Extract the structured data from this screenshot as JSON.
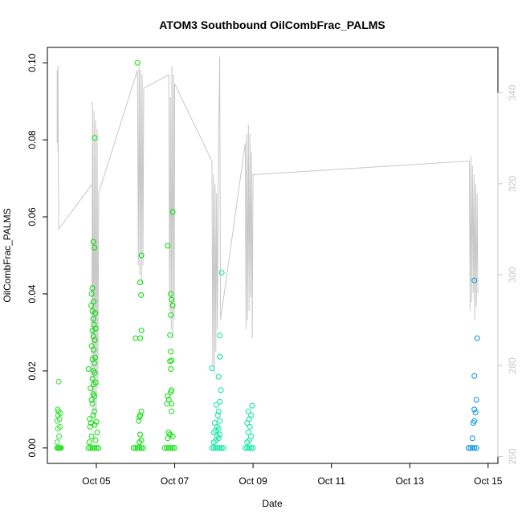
{
  "chart_data": {
    "type": "scatter",
    "title": "ATOM3 Southbound OilCombFrac_PALMS",
    "xlabel": "Date",
    "ylabel": "OilCombFrac_PALMS",
    "x_unit": "days in October",
    "xlim": [
      3.75,
      15.25
    ],
    "ylim": [
      -0.004,
      0.104
    ],
    "x_ticks": [
      5,
      7,
      9,
      11,
      13,
      15
    ],
    "x_tick_labels": [
      "Oct 05",
      "Oct 07",
      "Oct 09",
      "Oct 11",
      "Oct 13",
      "Oct 15"
    ],
    "y_ticks": [
      0.0,
      0.02,
      0.04,
      0.06,
      0.08,
      0.1
    ],
    "y_tick_labels": [
      "0.00",
      "0.02",
      "0.04",
      "0.06",
      "0.08",
      "0.10"
    ],
    "y2lim": [
      258.5,
      350
    ],
    "y2_ticks": [
      260,
      280,
      300,
      320,
      340
    ],
    "y2_tick_labels": [
      "260",
      "280",
      "300",
      "320",
      "340"
    ],
    "grid": false,
    "legend": "none",
    "colors": {
      "secondary_line": "#c8c8c8",
      "marker_palette": [
        "#2de02d",
        "#00e000",
        "#00e89a",
        "#0090e0"
      ]
    },
    "series": [
      {
        "kind": "points",
        "color": "#2de02d",
        "points": [
          [
            4.0,
            0.0
          ],
          [
            4.02,
            0.0
          ],
          [
            4.04,
            0.0
          ],
          [
            4.06,
            0.0
          ],
          [
            4.08,
            0.0
          ],
          [
            4.1,
            0.0
          ],
          [
            4.0,
            0.0015
          ],
          [
            4.05,
            0.003
          ],
          [
            4.02,
            0.005
          ],
          [
            4.07,
            0.0055
          ],
          [
            4.0,
            0.007
          ],
          [
            4.06,
            0.0075
          ],
          [
            4.02,
            0.0085
          ],
          [
            4.08,
            0.009
          ],
          [
            4.03,
            0.0095
          ],
          [
            4.01,
            0.01
          ],
          [
            4.04,
            0.0172
          ]
        ]
      },
      {
        "kind": "points",
        "color": "#00e000",
        "points": [
          [
            4.8,
            0.0
          ],
          [
            4.85,
            0.0
          ],
          [
            4.9,
            0.0
          ],
          [
            4.95,
            0.0
          ],
          [
            5.0,
            0.0
          ],
          [
            5.05,
            0.0
          ],
          [
            4.82,
            0.0015
          ],
          [
            4.98,
            0.002
          ],
          [
            4.88,
            0.003
          ],
          [
            5.02,
            0.004
          ],
          [
            4.84,
            0.0055
          ],
          [
            4.96,
            0.006
          ],
          [
            4.87,
            0.0065
          ],
          [
            5.0,
            0.0068
          ],
          [
            4.83,
            0.0075
          ],
          [
            4.92,
            0.0085
          ],
          [
            4.95,
            0.0095
          ],
          [
            4.9,
            0.0115
          ],
          [
            4.88,
            0.0125
          ],
          [
            4.95,
            0.0135
          ],
          [
            4.92,
            0.014
          ],
          [
            4.85,
            0.0155
          ],
          [
            4.93,
            0.0165
          ],
          [
            4.98,
            0.017
          ],
          [
            4.9,
            0.018
          ],
          [
            4.96,
            0.0195
          ],
          [
            4.8,
            0.0205
          ],
          [
            4.92,
            0.02
          ],
          [
            4.95,
            0.022
          ],
          [
            4.9,
            0.023
          ],
          [
            4.97,
            0.0235
          ],
          [
            4.93,
            0.0255
          ],
          [
            4.88,
            0.0265
          ],
          [
            4.96,
            0.028
          ],
          [
            4.92,
            0.029
          ],
          [
            4.9,
            0.0305
          ],
          [
            4.98,
            0.031
          ],
          [
            4.94,
            0.032
          ],
          [
            4.92,
            0.0335
          ],
          [
            4.97,
            0.035
          ],
          [
            4.9,
            0.0355
          ],
          [
            4.87,
            0.037
          ],
          [
            4.93,
            0.038
          ],
          [
            4.88,
            0.04
          ],
          [
            4.9,
            0.0415
          ],
          [
            4.95,
            0.052
          ],
          [
            4.92,
            0.0535
          ],
          [
            4.96,
            0.0805
          ]
        ]
      },
      {
        "kind": "points",
        "color": "#00e000",
        "points": [
          [
            5.95,
            0.0
          ],
          [
            6.0,
            0.0
          ],
          [
            6.05,
            0.0
          ],
          [
            6.1,
            0.0
          ],
          [
            6.15,
            0.0
          ],
          [
            6.2,
            0.0
          ],
          [
            6.1,
            0.0015
          ],
          [
            6.15,
            0.002
          ],
          [
            6.12,
            0.0035
          ],
          [
            6.08,
            0.007
          ],
          [
            6.1,
            0.008
          ],
          [
            6.12,
            0.0085
          ],
          [
            6.15,
            0.0095
          ],
          [
            6.0,
            0.0285
          ],
          [
            6.12,
            0.0285
          ],
          [
            6.15,
            0.0305
          ],
          [
            6.14,
            0.0397
          ],
          [
            6.12,
            0.043
          ],
          [
            6.15,
            0.05
          ],
          [
            6.05,
            0.1
          ]
        ]
      },
      {
        "kind": "points",
        "color": "#00e000",
        "points": [
          [
            6.75,
            0.0
          ],
          [
            6.8,
            0.0
          ],
          [
            6.85,
            0.0
          ],
          [
            6.9,
            0.0
          ],
          [
            6.95,
            0.0
          ],
          [
            7.0,
            0.0
          ],
          [
            6.82,
            0.0025
          ],
          [
            6.88,
            0.0035
          ],
          [
            6.95,
            0.003
          ],
          [
            6.85,
            0.004
          ],
          [
            6.92,
            0.0095
          ],
          [
            6.8,
            0.0115
          ],
          [
            6.92,
            0.0115
          ],
          [
            6.85,
            0.0125
          ],
          [
            6.82,
            0.0135
          ],
          [
            6.9,
            0.0145
          ],
          [
            6.92,
            0.015
          ],
          [
            6.9,
            0.0205
          ],
          [
            6.88,
            0.0225
          ],
          [
            6.92,
            0.0227
          ],
          [
            6.9,
            0.025
          ],
          [
            6.88,
            0.0293
          ],
          [
            6.9,
            0.0345
          ],
          [
            6.95,
            0.037
          ],
          [
            6.92,
            0.0385
          ],
          [
            6.9,
            0.04
          ],
          [
            6.82,
            0.0525
          ],
          [
            6.95,
            0.0613
          ]
        ]
      },
      {
        "kind": "points",
        "color": "#00e89a",
        "points": [
          [
            7.95,
            0.0
          ],
          [
            8.0,
            0.0
          ],
          [
            8.05,
            0.0
          ],
          [
            8.1,
            0.0
          ],
          [
            8.15,
            0.0
          ],
          [
            8.2,
            0.0
          ],
          [
            8.25,
            0.0
          ],
          [
            8.0,
            0.0015
          ],
          [
            8.05,
            0.002
          ],
          [
            8.12,
            0.0025
          ],
          [
            8.08,
            0.003
          ],
          [
            8.15,
            0.0035
          ],
          [
            8.0,
            0.004
          ],
          [
            8.05,
            0.0045
          ],
          [
            8.12,
            0.005
          ],
          [
            8.08,
            0.0055
          ],
          [
            8.02,
            0.0065
          ],
          [
            8.15,
            0.007
          ],
          [
            8.1,
            0.0085
          ],
          [
            8.12,
            0.0095
          ],
          [
            8.06,
            0.0112
          ],
          [
            8.15,
            0.012
          ],
          [
            8.18,
            0.015
          ],
          [
            8.12,
            0.0185
          ],
          [
            7.95,
            0.0207
          ],
          [
            8.15,
            0.0237
          ],
          [
            8.15,
            0.0292
          ],
          [
            8.2,
            0.0455
          ]
        ]
      },
      {
        "kind": "points",
        "color": "#00e89a",
        "points": [
          [
            8.8,
            0.0
          ],
          [
            8.85,
            0.0
          ],
          [
            8.9,
            0.0
          ],
          [
            8.95,
            0.0
          ],
          [
            9.0,
            0.0
          ],
          [
            8.85,
            0.0015
          ],
          [
            8.9,
            0.002
          ],
          [
            8.95,
            0.003
          ],
          [
            8.88,
            0.004
          ],
          [
            8.92,
            0.0055
          ],
          [
            8.85,
            0.0065
          ],
          [
            8.9,
            0.0075
          ],
          [
            8.95,
            0.0085
          ],
          [
            8.88,
            0.0095
          ],
          [
            8.98,
            0.011
          ]
        ]
      },
      {
        "kind": "points",
        "color": "#0090e0",
        "points": [
          [
            14.5,
            0.0
          ],
          [
            14.55,
            0.0
          ],
          [
            14.6,
            0.0
          ],
          [
            14.65,
            0.0
          ],
          [
            14.7,
            0.0
          ],
          [
            14.6,
            0.0025
          ],
          [
            14.62,
            0.0065
          ],
          [
            14.65,
            0.007
          ],
          [
            14.68,
            0.0092
          ],
          [
            14.65,
            0.01
          ],
          [
            14.7,
            0.0125
          ],
          [
            14.65,
            0.0187
          ],
          [
            14.72,
            0.0285
          ],
          [
            14.65,
            0.0435
          ]
        ]
      },
      {
        "kind": "line",
        "axis": "right",
        "color": "#c8c8c8",
        "points": [
          [
            4.0,
            329
          ],
          [
            4.0,
            345
          ],
          [
            4.02,
            327
          ],
          [
            4.02,
            346
          ],
          [
            4.04,
            310
          ],
          [
            4.9,
            320
          ],
          [
            4.88,
            272
          ],
          [
            4.9,
            338
          ],
          [
            4.92,
            270
          ],
          [
            4.94,
            336
          ],
          [
            4.96,
            268
          ],
          [
            4.98,
            334
          ],
          [
            5.0,
            270
          ],
          [
            5.02,
            332
          ],
          [
            5.04,
            275
          ],
          [
            5.06,
            318
          ],
          [
            6.05,
            345
          ],
          [
            6.07,
            302
          ],
          [
            6.09,
            346
          ],
          [
            6.11,
            300
          ],
          [
            6.13,
            345
          ],
          [
            6.15,
            298
          ],
          [
            6.17,
            344
          ],
          [
            6.19,
            302
          ],
          [
            6.21,
            341
          ],
          [
            6.85,
            344
          ],
          [
            6.87,
            292
          ],
          [
            6.89,
            339
          ],
          [
            6.91,
            288
          ],
          [
            6.93,
            346
          ],
          [
            6.95,
            286
          ],
          [
            6.97,
            344
          ],
          [
            6.99,
            290
          ],
          [
            7.0,
            342
          ],
          [
            7.95,
            325
          ],
          [
            7.97,
            280
          ],
          [
            7.99,
            322
          ],
          [
            8.01,
            278
          ],
          [
            8.03,
            320
          ],
          [
            8.05,
            283
          ],
          [
            8.07,
            318
          ],
          [
            8.09,
            288
          ],
          [
            8.12,
            330
          ],
          [
            8.15,
            348
          ],
          [
            8.17,
            290
          ],
          [
            8.8,
            329
          ],
          [
            8.82,
            288
          ],
          [
            8.84,
            331
          ],
          [
            8.86,
            290
          ],
          [
            8.88,
            333
          ],
          [
            8.9,
            292
          ],
          [
            8.92,
            331
          ],
          [
            8.94,
            295
          ],
          [
            8.96,
            327
          ],
          [
            8.98,
            286
          ],
          [
            9.0,
            322
          ],
          [
            14.52,
            325
          ],
          [
            14.54,
            292
          ],
          [
            14.56,
            326
          ],
          [
            14.58,
            294
          ],
          [
            14.6,
            324
          ],
          [
            14.62,
            296
          ],
          [
            14.64,
            322
          ],
          [
            14.66,
            290
          ],
          [
            14.68,
            320
          ],
          [
            14.7,
            293
          ],
          [
            14.72,
            318
          ],
          [
            14.74,
            296
          ]
        ]
      }
    ]
  }
}
